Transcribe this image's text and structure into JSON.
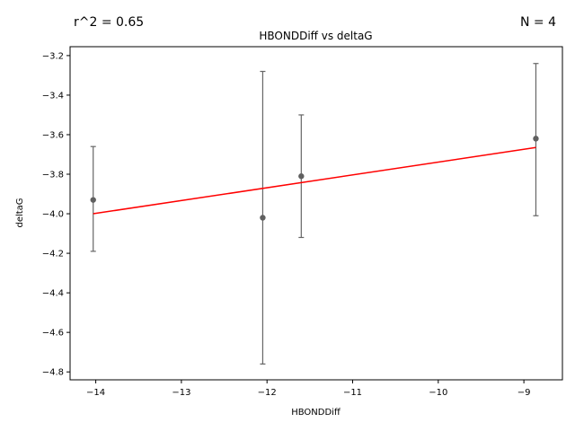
{
  "chart_data": {
    "type": "scatter",
    "title": "HBONDDiff vs deltaG",
    "xlabel": "HBONDDiff",
    "ylabel": "deltaG",
    "xlim": [
      -14.3,
      -8.55
    ],
    "ylim": [
      -4.84,
      -3.155
    ],
    "xticks": [
      -14,
      -13,
      -12,
      -11,
      -10,
      -9
    ],
    "xtick_labels": [
      "−14",
      "−13",
      "−12",
      "−11",
      "−10",
      "−9"
    ],
    "yticks": [
      -4.8,
      -4.6,
      -4.4,
      -4.2,
      -4.0,
      -3.8,
      -3.6,
      -3.4,
      -3.2
    ],
    "ytick_labels": [
      "−4.8",
      "−4.6",
      "−4.4",
      "−4.2",
      "−4.0",
      "−3.8",
      "−3.6",
      "−3.4",
      "−3.2"
    ],
    "grid": false,
    "points": [
      {
        "x": -14.03,
        "y": -3.93,
        "err_low": -4.19,
        "err_high": -3.66
      },
      {
        "x": -12.05,
        "y": -4.02,
        "err_low": -4.76,
        "err_high": -3.28
      },
      {
        "x": -11.6,
        "y": -3.81,
        "err_low": -4.12,
        "err_high": -3.5
      },
      {
        "x": -8.86,
        "y": -3.62,
        "err_low": -4.01,
        "err_high": -3.24
      }
    ],
    "fit_line": {
      "x": [
        -14.03,
        -8.86
      ],
      "y": [
        -4.0,
        -3.665
      ]
    },
    "annotations": {
      "left": "r^2 = 0.65",
      "right": "N = 4"
    },
    "colors": {
      "points": "#606060",
      "errorbars": "#666666",
      "fit_line": "#ff0000",
      "axes": "#000000"
    }
  }
}
